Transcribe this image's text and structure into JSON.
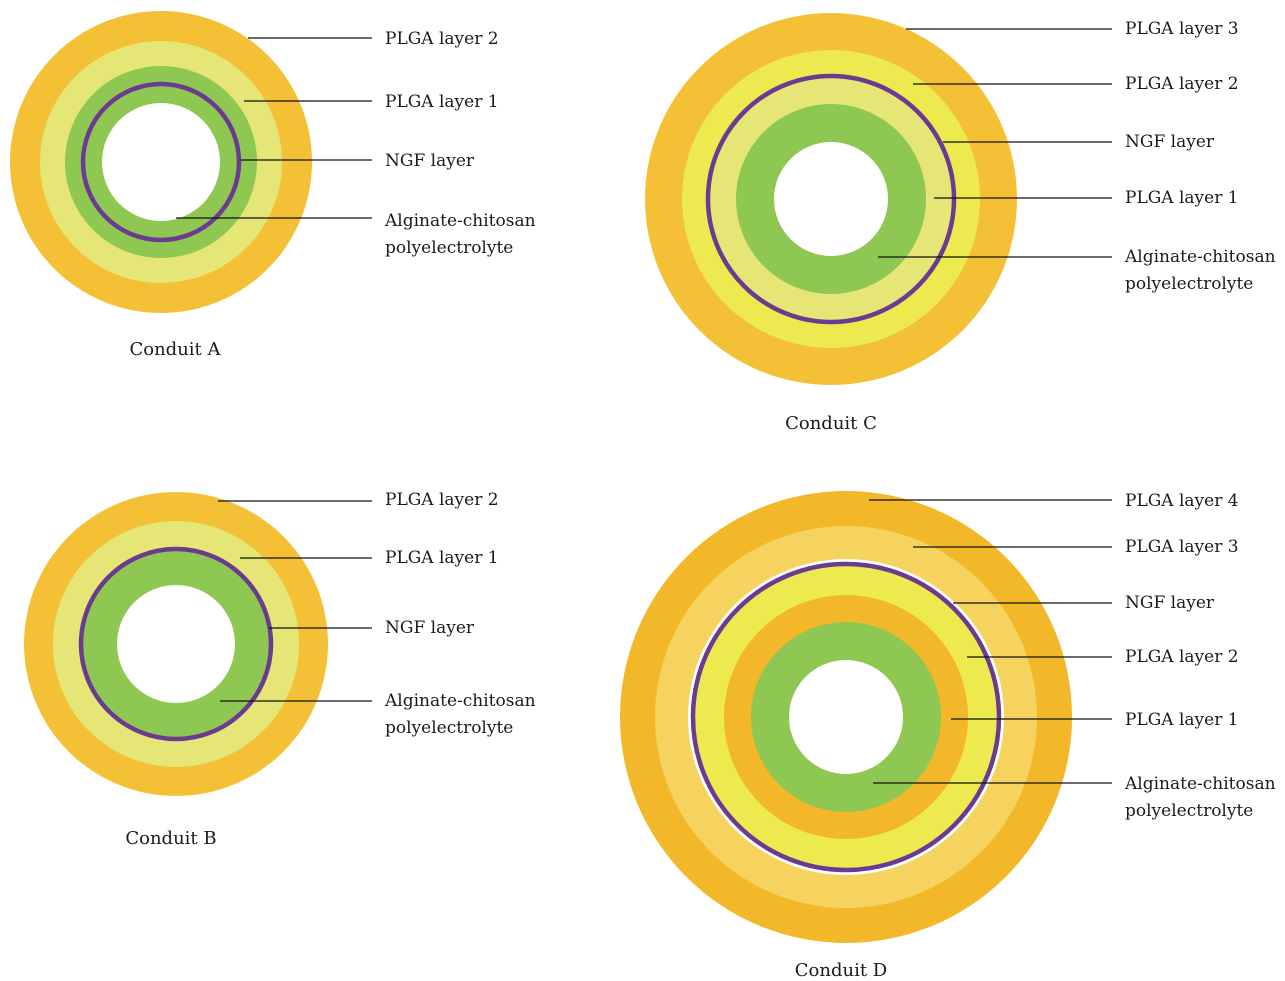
{
  "colors": {
    "orange": "#f4c136",
    "pale_yellow": "#e5e675",
    "green": "#8fc753",
    "bright_yellow": "#ecea4e",
    "amber": "#f3b72a",
    "light_orange": "#f5d35e",
    "purple": "#6a3b91",
    "center": "#ffffff"
  },
  "conduits": [
    {
      "name": "Conduit A",
      "labels": [
        "PLGA  layer 2",
        "PLGA  layer 1",
        "NGF layer",
        "Alginate-chitosan\npolyelectrolyte"
      ]
    },
    {
      "name": "Conduit C",
      "labels": [
        "PLGA  layer 3",
        "PLGA  layer 2",
        "NGF layer",
        "PLGA  layer 1",
        "Alginate-chitosan\npolyelectrolyte"
      ]
    },
    {
      "name": "Conduit B",
      "labels": [
        "PLGA  layer 2",
        "PLGA  layer 1",
        "NGF layer",
        "Alginate-chitosan\npolyelectrolyte"
      ]
    },
    {
      "name": "Conduit D",
      "labels": [
        "PLGA  layer 4",
        "PLGA  layer 3",
        "NGF layer",
        "PLGA  layer 2",
        "PLGA  layer 1",
        "Alginate-chitosan\npolyelectrolyte"
      ]
    }
  ]
}
